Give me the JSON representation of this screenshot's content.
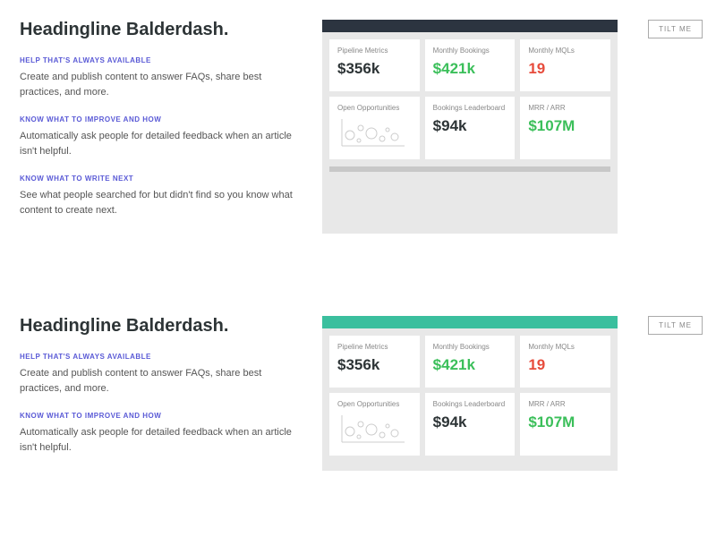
{
  "button_label": "TILT ME",
  "heading": "Headingline Balderdash.",
  "features": [
    {
      "sub": "HELP THAT'S ALWAYS AVAILABLE",
      "desc": "Create and publish content to answer FAQs, share best practices, and more."
    },
    {
      "sub": "KNOW WHAT TO IMPROVE AND HOW",
      "desc": "Automatically ask people for detailed feedback when an article isn't helpful."
    },
    {
      "sub": "KNOW WHAT TO WRITE NEXT",
      "desc": "See what people searched for but didn't find so you know what content to create next."
    }
  ],
  "bar_colors": {
    "dark": "#2c3440",
    "teal": "#3bbf9e"
  },
  "cards": [
    {
      "title": "Pipeline Metrics",
      "value": "$356k",
      "color": "v-dark"
    },
    {
      "title": "Monthly Bookings",
      "value": "$421k",
      "color": "v-green"
    },
    {
      "title": "Monthly MQLs",
      "value": "19",
      "color": "v-orange"
    },
    {
      "title": "Open Opportunities",
      "value": "",
      "color": "v-dark",
      "chart": true
    },
    {
      "title": "Bookings Leaderboard",
      "value": "$94k",
      "color": "v-dark"
    },
    {
      "title": "MRR / ARR",
      "value": "$107M",
      "color": "v-green"
    }
  ],
  "colors": {
    "sub": "#5a5ad6",
    "text": "#555",
    "heading": "#2d3436",
    "card_bg": "#ffffff",
    "dash_bg": "#e8e8e8",
    "green": "#3bbf5a",
    "orange": "#e74c3c",
    "chart_stroke": "#cccccc"
  }
}
